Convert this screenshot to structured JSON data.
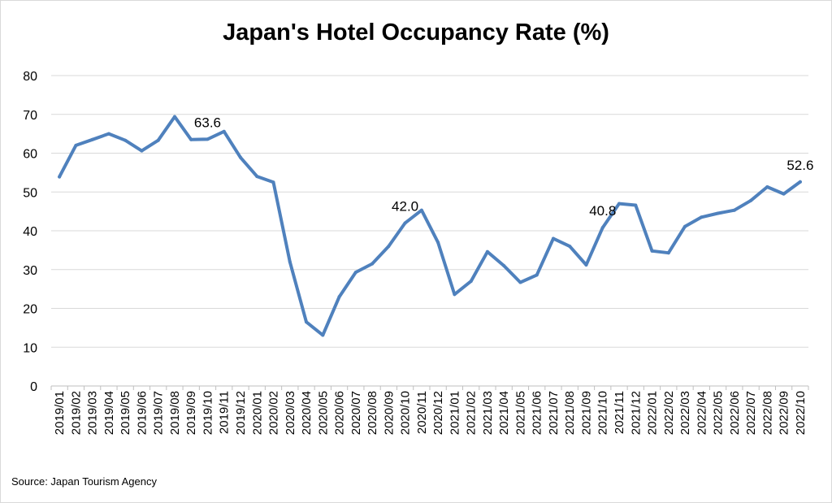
{
  "chart_data": {
    "type": "line",
    "title": "Japan's Hotel Occupancy Rate (%)",
    "xlabel": "",
    "ylabel": "",
    "ylim": [
      0,
      80
    ],
    "yticks": [
      0,
      10,
      20,
      30,
      40,
      50,
      60,
      70,
      80
    ],
    "grid": true,
    "legend": "none",
    "categories": [
      "2019/01",
      "2019/02",
      "2019/03",
      "2019/04",
      "2019/05",
      "2019/06",
      "2019/07",
      "2019/08",
      "2019/09",
      "2019/10",
      "2019/11",
      "2019/12",
      "2020/01",
      "2020/02",
      "2020/03",
      "2020/04",
      "2020/05",
      "2020/06",
      "2020/07",
      "2020/08",
      "2020/09",
      "2020/10",
      "2020/11",
      "2020/12",
      "2021/01",
      "2021/02",
      "2021/03",
      "2021/04",
      "2021/05",
      "2021/06",
      "2021/07",
      "2021/08",
      "2021/09",
      "2021/10",
      "2021/11",
      "2021/12",
      "2022/01",
      "2022/02",
      "2022/03",
      "2022/04",
      "2022/05",
      "2022/06",
      "2022/07",
      "2022/08",
      "2022/09",
      "2022/10"
    ],
    "series": [
      {
        "values": [
          53.9,
          62.0,
          63.5,
          65.0,
          63.3,
          60.6,
          63.3,
          69.4,
          63.5,
          63.6,
          65.6,
          58.9,
          54.0,
          52.5,
          32.0,
          16.5,
          13.1,
          23.0,
          29.3,
          31.5,
          36.0,
          42.0,
          45.3,
          37.0,
          23.6,
          27.0,
          34.6,
          31.0,
          26.7,
          28.6,
          38.0,
          36.0,
          31.2,
          40.8,
          47.0,
          46.6,
          34.8,
          34.3,
          41.1,
          43.5,
          44.5,
          45.3,
          47.8,
          51.3,
          49.5,
          52.6
        ],
        "color": "#4f81bd"
      }
    ],
    "data_labels": [
      {
        "index": 9,
        "text": "63.6"
      },
      {
        "index": 21,
        "text": "42.0"
      },
      {
        "index": 33,
        "text": "40.8"
      },
      {
        "index": 45,
        "text": "52.6"
      }
    ]
  },
  "footer": {
    "source": "Source: Japan Tourism Agency"
  }
}
